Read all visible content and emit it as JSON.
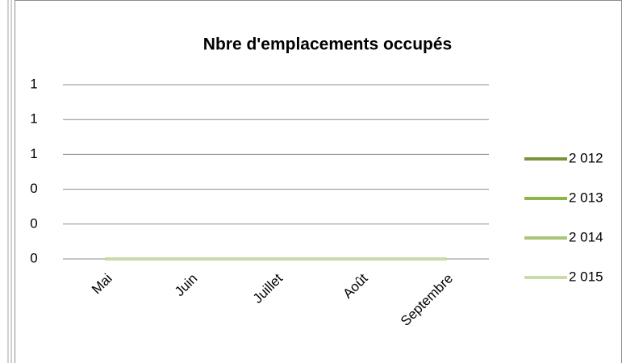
{
  "chart_data": {
    "type": "line",
    "title": "Nbre d'emplacements occupés",
    "categories": [
      "Mai",
      "Juin",
      "Juillet",
      "Août",
      "Septembre"
    ],
    "series": [
      {
        "name": "2 012",
        "color": "#77933c",
        "values": [
          0,
          0,
          0,
          0,
          0
        ]
      },
      {
        "name": "2 013",
        "color": "#8db548",
        "values": [
          0,
          0,
          0,
          0,
          0
        ]
      },
      {
        "name": "2 014",
        "color": "#a8c57a",
        "values": [
          0,
          0,
          0,
          0,
          0
        ]
      },
      {
        "name": "2 015",
        "color": "#c8dbab",
        "values": [
          0,
          0,
          0,
          0,
          0
        ]
      }
    ],
    "ylim": [
      0,
      1
    ],
    "yticks": [
      0,
      {
        "value": 0.2,
        "label": "0"
      },
      {
        "value": 0.4,
        "label": "0"
      },
      {
        "value": 0.6,
        "label": "1"
      },
      {
        "value": 0.8,
        "label": "1"
      },
      1
    ],
    "grid": true,
    "legend": "right"
  }
}
